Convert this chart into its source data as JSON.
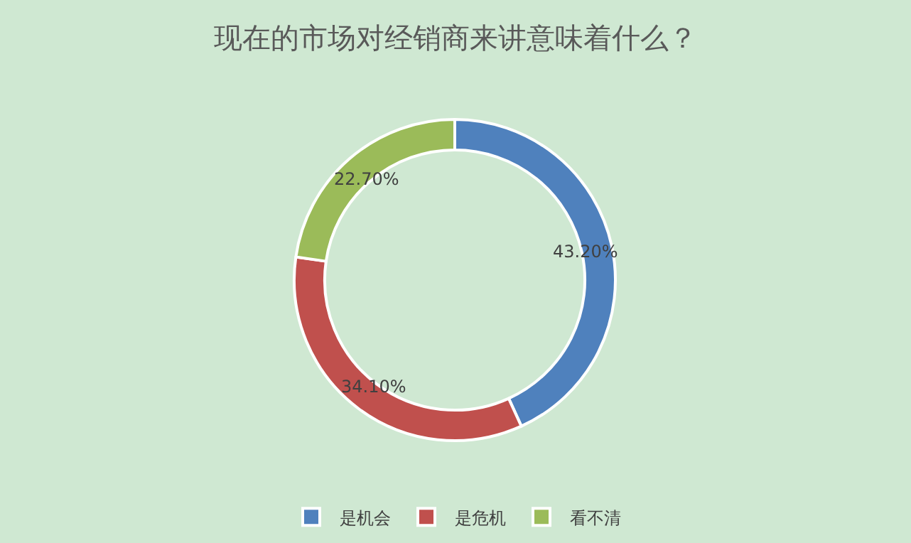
{
  "chart_data": {
    "type": "donut",
    "title": "现在的市场对经销商来讲意味着什么？",
    "categories": [
      "是机会",
      "是危机",
      "看不清"
    ],
    "values": [
      43.2,
      34.1,
      22.7
    ],
    "colors": [
      "#4f81bd",
      "#c0504d",
      "#9bbb59"
    ],
    "value_labels": [
      "43.20%",
      "34.10%",
      "22.70%"
    ],
    "legend": "bottom"
  }
}
